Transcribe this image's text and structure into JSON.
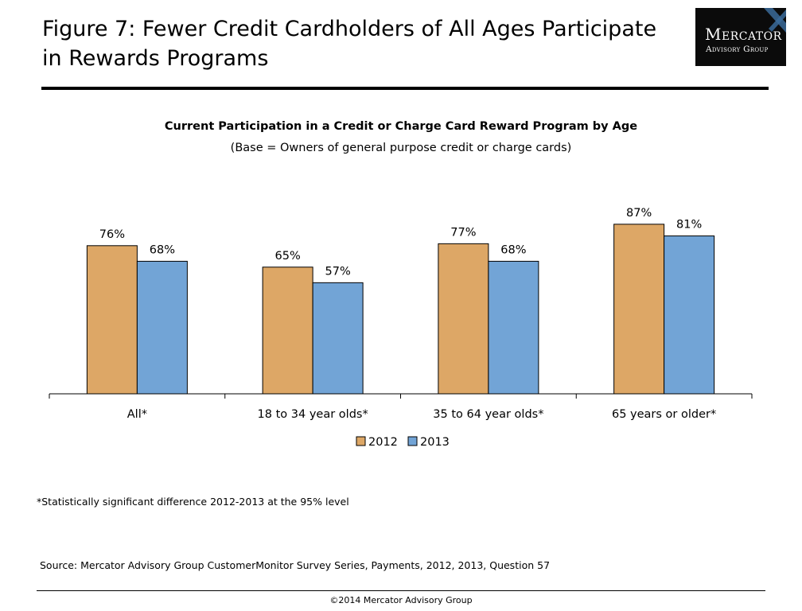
{
  "header": {
    "title_line1": "Figure 7: Fewer Credit Cardholders of All Ages Participate",
    "title_line2": "in Rewards Programs"
  },
  "logo": {
    "name": "Mercator",
    "subname": "Advisory Group"
  },
  "chart_data": {
    "type": "bar",
    "title": "Current Participation in a Credit or Charge Card Reward Program by Age",
    "subtitle": "(Base = Owners of general purpose credit or charge cards)",
    "categories": [
      "All*",
      "18 to 34 year olds*",
      "35 to 64 year olds*",
      "65 years or older*"
    ],
    "series": [
      {
        "name": "2012",
        "values": [
          76,
          65,
          77,
          87
        ],
        "labels": [
          "76%",
          "65%",
          "77%",
          "87%"
        ],
        "color": "#DDA766"
      },
      {
        "name": "2013",
        "values": [
          68,
          57,
          68,
          81
        ],
        "labels": [
          "68%",
          "57%",
          "68%",
          "81%"
        ],
        "color": "#72A4D6"
      }
    ],
    "value_unit": "%",
    "ylim": [
      0,
      100
    ],
    "grid": false,
    "legend_position": "bottom",
    "xlabel": "",
    "ylabel": ""
  },
  "footnote": "*Statistically significant difference 2012-2013 at the 95% level",
  "source": "Source: Mercator Advisory Group CustomerMonitor Survey Series, Payments,  2012, 2013,  Question 57",
  "copyright": "©2014 Mercator Advisory Group"
}
